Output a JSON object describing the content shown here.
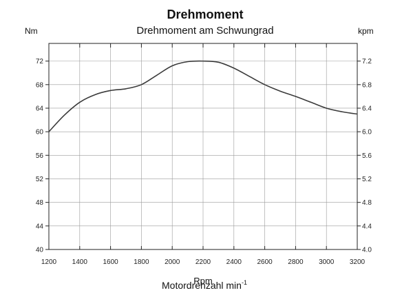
{
  "chart_data": {
    "type": "line",
    "title": "Drehmoment",
    "subtitle": "Drehmoment am Schwungrad",
    "ylabel_left": "Nm",
    "ylabel_right": "kpm",
    "xlabel": "Motordrehzahl min",
    "xlabel_superscript": "-1",
    "xunit_label": "Rpm",
    "xlim": [
      1200,
      3200
    ],
    "ylim": [
      40,
      75
    ],
    "ylim_right": [
      4.0,
      7.5
    ],
    "grid": true,
    "x_ticks": [
      1200,
      1400,
      1600,
      1800,
      2000,
      2200,
      2400,
      2600,
      2800,
      3000,
      3200
    ],
    "x_tick_labels": [
      "1200",
      "1400",
      "1600",
      "1800",
      "2000",
      "2200",
      "2400",
      "2600",
      "2800",
      "3000",
      "3200"
    ],
    "y_ticks_left": [
      40,
      44,
      48,
      52,
      56,
      60,
      64,
      68,
      72
    ],
    "y_tick_labels_left": [
      "40",
      "44",
      "48",
      "52",
      "56",
      "60",
      "64",
      "68",
      "72"
    ],
    "y_tick_labels_right": [
      "4.0",
      "4.4",
      "4.8",
      "5.2",
      "5.6",
      "6.0",
      "6.4",
      "6.8",
      "7.2"
    ],
    "series": [
      {
        "x": [
          1200,
          1300,
          1400,
          1500,
          1600,
          1700,
          1800,
          1900,
          2000,
          2100,
          2200,
          2300,
          2400,
          2500,
          2600,
          2700,
          2800,
          2900,
          3000,
          3100,
          3200
        ],
        "values": [
          60.0,
          62.8,
          65.0,
          66.3,
          67.0,
          67.3,
          68.0,
          69.6,
          71.2,
          71.9,
          72.0,
          71.8,
          70.8,
          69.4,
          68.0,
          66.9,
          66.0,
          65.0,
          64.0,
          63.4,
          63.0
        ]
      }
    ],
    "line_color": "#3a3a3a"
  }
}
